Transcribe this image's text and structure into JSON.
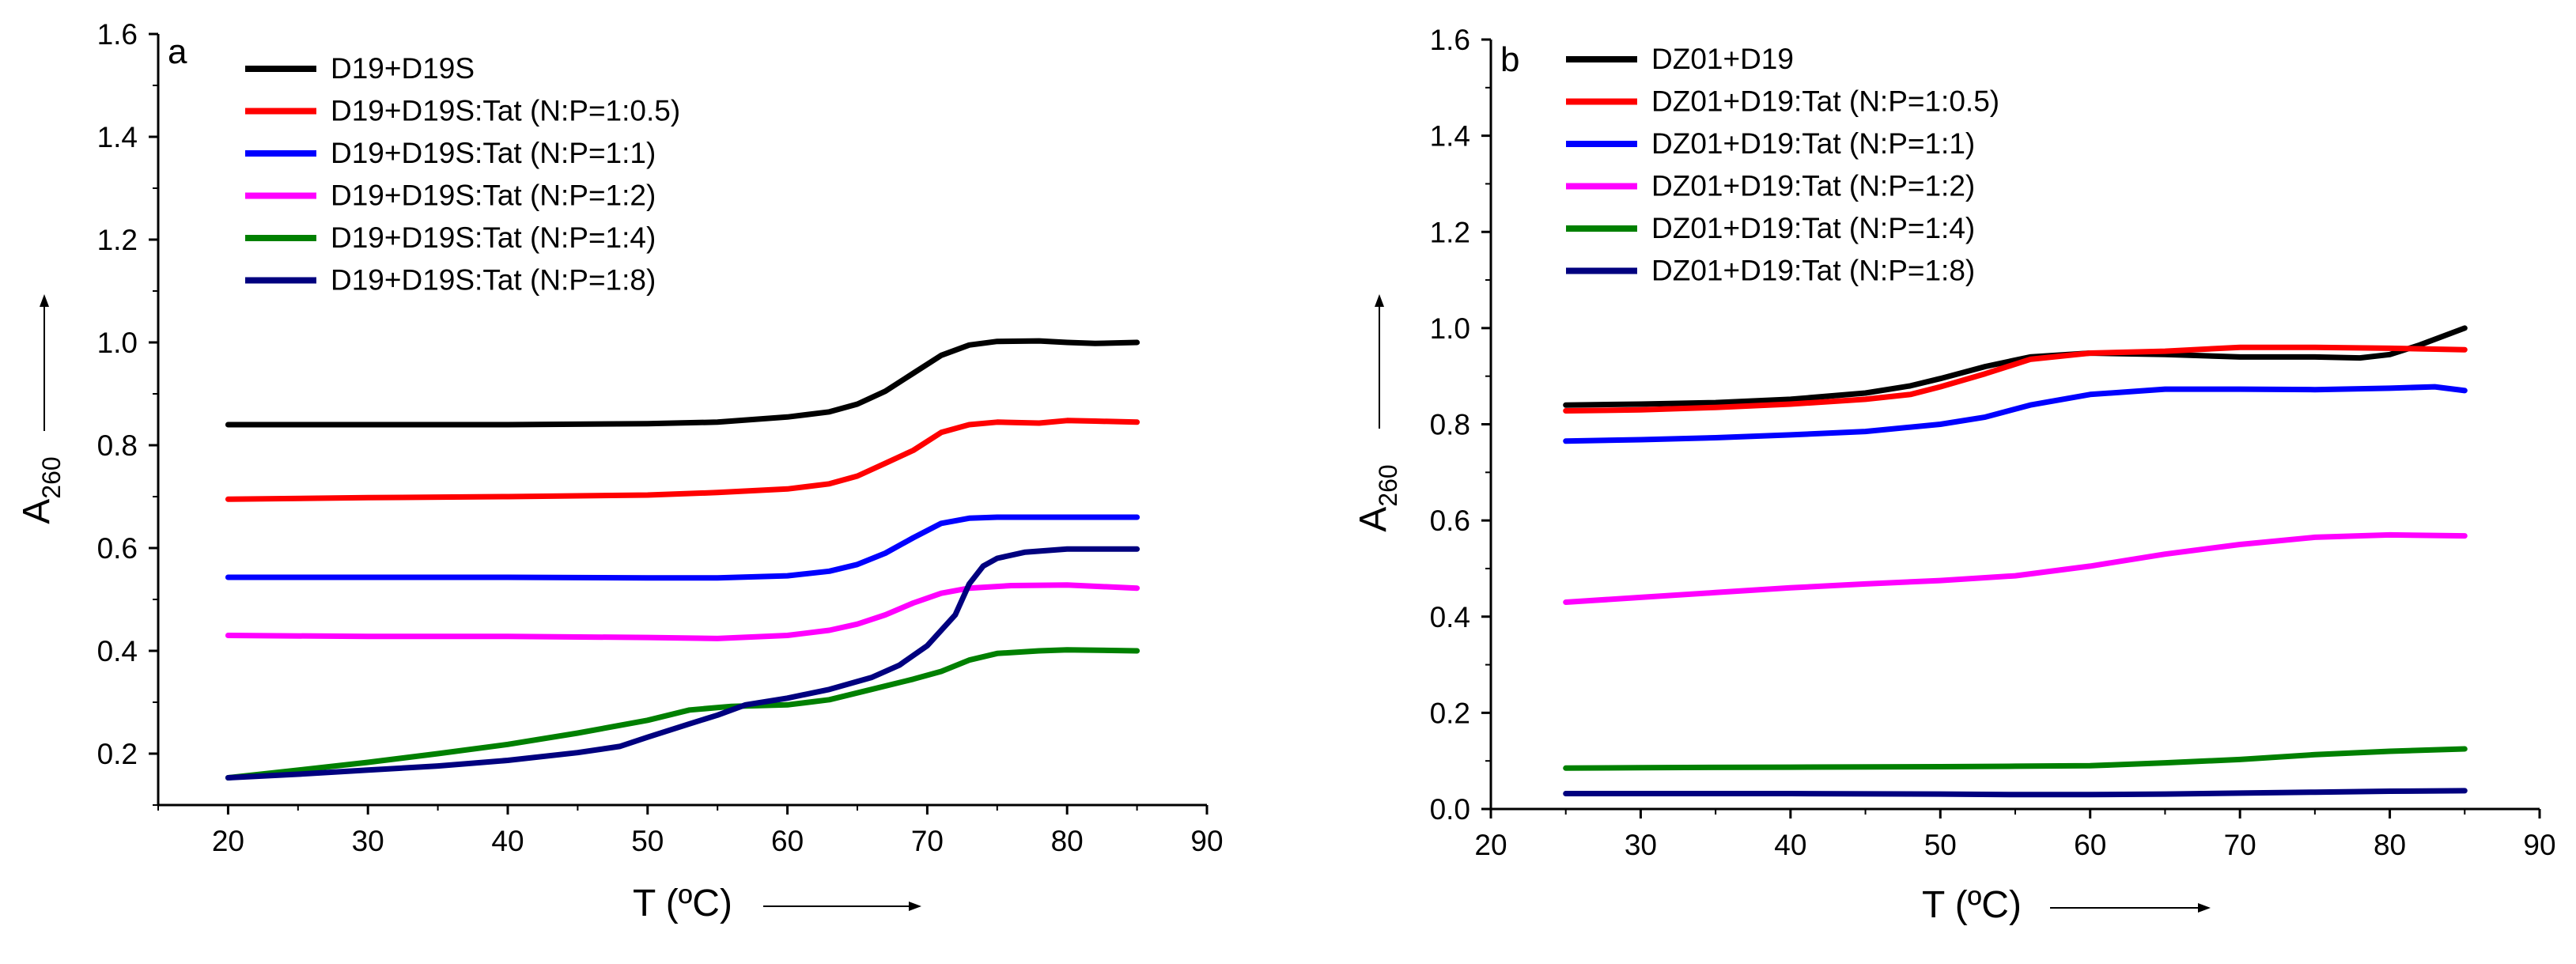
{
  "chart_data": [
    {
      "type": "line",
      "panel_label": "a",
      "xlabel": "T (ºC)",
      "ylabel": "A",
      "ylabel_subscript": "260",
      "xlim": [
        15,
        90
      ],
      "ylim": [
        0.1,
        1.6
      ],
      "x_ticks": [
        "20",
        "30",
        "40",
        "50",
        "60",
        "70",
        "80",
        "90"
      ],
      "y_ticks": [
        "0.2",
        "0.4",
        "0.6",
        "0.8",
        "1.0",
        "1.2",
        "1.4",
        "1.6"
      ],
      "grid": false,
      "legend_position": "top-left",
      "series": [
        {
          "name": "D19+D19S",
          "color": "#000000",
          "points": [
            [
              20,
              0.84
            ],
            [
              30,
              0.84
            ],
            [
              40,
              0.84
            ],
            [
              50,
              0.842
            ],
            [
              55,
              0.845
            ],
            [
              60,
              0.855
            ],
            [
              63,
              0.865
            ],
            [
              65,
              0.88
            ],
            [
              67,
              0.905
            ],
            [
              69,
              0.94
            ],
            [
              71,
              0.975
            ],
            [
              73,
              0.995
            ],
            [
              75,
              1.002
            ],
            [
              78,
              1.003
            ],
            [
              80,
              1.0
            ],
            [
              82,
              0.998
            ],
            [
              85,
              1.0
            ]
          ]
        },
        {
          "name": "D19+D19S:Tat (N:P=1:0.5)",
          "color": "#ff0000",
          "points": [
            [
              20,
              0.695
            ],
            [
              30,
              0.698
            ],
            [
              40,
              0.7
            ],
            [
              50,
              0.703
            ],
            [
              55,
              0.708
            ],
            [
              60,
              0.715
            ],
            [
              63,
              0.725
            ],
            [
              65,
              0.74
            ],
            [
              67,
              0.765
            ],
            [
              69,
              0.79
            ],
            [
              71,
              0.825
            ],
            [
              73,
              0.84
            ],
            [
              75,
              0.845
            ],
            [
              78,
              0.843
            ],
            [
              80,
              0.848
            ],
            [
              82,
              0.847
            ],
            [
              85,
              0.845
            ]
          ]
        },
        {
          "name": "D19+D19S:Tat (N:P=1:1)",
          "color": "#0000ff",
          "points": [
            [
              20,
              0.543
            ],
            [
              30,
              0.543
            ],
            [
              40,
              0.543
            ],
            [
              50,
              0.542
            ],
            [
              55,
              0.542
            ],
            [
              60,
              0.546
            ],
            [
              63,
              0.555
            ],
            [
              65,
              0.568
            ],
            [
              67,
              0.59
            ],
            [
              69,
              0.62
            ],
            [
              71,
              0.648
            ],
            [
              73,
              0.658
            ],
            [
              75,
              0.66
            ],
            [
              80,
              0.66
            ],
            [
              85,
              0.66
            ]
          ]
        },
        {
          "name": "D19+D19S:Tat (N:P=1:2)",
          "color": "#ff00ff",
          "points": [
            [
              20,
              0.43
            ],
            [
              30,
              0.428
            ],
            [
              40,
              0.428
            ],
            [
              50,
              0.426
            ],
            [
              55,
              0.424
            ],
            [
              60,
              0.43
            ],
            [
              63,
              0.44
            ],
            [
              65,
              0.452
            ],
            [
              67,
              0.47
            ],
            [
              69,
              0.493
            ],
            [
              71,
              0.512
            ],
            [
              73,
              0.522
            ],
            [
              76,
              0.527
            ],
            [
              80,
              0.528
            ],
            [
              85,
              0.522
            ]
          ]
        },
        {
          "name": "D19+D19S:Tat (N:P=1:4)",
          "color": "#008000",
          "points": [
            [
              20,
              0.153
            ],
            [
              25,
              0.168
            ],
            [
              30,
              0.183
            ],
            [
              35,
              0.2
            ],
            [
              40,
              0.218
            ],
            [
              45,
              0.24
            ],
            [
              50,
              0.265
            ],
            [
              53,
              0.285
            ],
            [
              56,
              0.292
            ],
            [
              60,
              0.295
            ],
            [
              63,
              0.305
            ],
            [
              66,
              0.325
            ],
            [
              69,
              0.345
            ],
            [
              71,
              0.36
            ],
            [
              73,
              0.382
            ],
            [
              75,
              0.395
            ],
            [
              78,
              0.4
            ],
            [
              80,
              0.402
            ],
            [
              85,
              0.4
            ]
          ]
        },
        {
          "name": "D19+D19S:Tat (N:P=1:8)",
          "color": "#00007f",
          "points": [
            [
              20,
              0.153
            ],
            [
              25,
              0.16
            ],
            [
              30,
              0.168
            ],
            [
              35,
              0.176
            ],
            [
              40,
              0.187
            ],
            [
              45,
              0.202
            ],
            [
              48,
              0.214
            ],
            [
              50,
              0.232
            ],
            [
              53,
              0.258
            ],
            [
              55,
              0.275
            ],
            [
              57,
              0.295
            ],
            [
              60,
              0.308
            ],
            [
              63,
              0.325
            ],
            [
              66,
              0.348
            ],
            [
              68,
              0.372
            ],
            [
              70,
              0.41
            ],
            [
              72,
              0.47
            ],
            [
              73,
              0.53
            ],
            [
              74,
              0.565
            ],
            [
              75,
              0.58
            ],
            [
              77,
              0.592
            ],
            [
              80,
              0.598
            ],
            [
              85,
              0.598
            ]
          ]
        }
      ],
      "legend_labels": [
        "D19+D19S",
        "D19+D19S:Tat (N:P=1:0.5)",
        "D19+D19S:Tat (N:P=1:1)",
        "D19+D19S:Tat (N:P=1:2)",
        "D19+D19S:Tat (N:P=1:4)",
        "D19+D19S:Tat (N:P=1:8)"
      ]
    },
    {
      "type": "line",
      "panel_label": "b",
      "xlabel": "T (ºC)",
      "ylabel": "A",
      "ylabel_subscript": "260",
      "xlim": [
        20,
        90
      ],
      "ylim": [
        0.0,
        1.6
      ],
      "x_ticks": [
        "20",
        "30",
        "40",
        "50",
        "60",
        "70",
        "80",
        "90"
      ],
      "y_ticks": [
        "0.0",
        "0.2",
        "0.4",
        "0.6",
        "0.8",
        "1.0",
        "1.2",
        "1.4",
        "1.6"
      ],
      "grid": false,
      "legend_position": "top-left",
      "series": [
        {
          "name": "DZ01+D19",
          "color": "#000000",
          "points": [
            [
              25,
              0.84
            ],
            [
              30,
              0.842
            ],
            [
              35,
              0.845
            ],
            [
              40,
              0.852
            ],
            [
              45,
              0.865
            ],
            [
              48,
              0.88
            ],
            [
              50,
              0.895
            ],
            [
              53,
              0.92
            ],
            [
              56,
              0.94
            ],
            [
              60,
              0.948
            ],
            [
              65,
              0.945
            ],
            [
              70,
              0.94
            ],
            [
              75,
              0.94
            ],
            [
              78,
              0.938
            ],
            [
              80,
              0.945
            ],
            [
              82,
              0.965
            ],
            [
              85,
              1.0
            ]
          ]
        },
        {
          "name": "DZ01+D19:Tat (N:P=1:0.5)",
          "color": "#ff0000",
          "points": [
            [
              25,
              0.828
            ],
            [
              30,
              0.83
            ],
            [
              35,
              0.835
            ],
            [
              40,
              0.842
            ],
            [
              45,
              0.852
            ],
            [
              48,
              0.862
            ],
            [
              50,
              0.878
            ],
            [
              53,
              0.905
            ],
            [
              56,
              0.935
            ],
            [
              60,
              0.948
            ],
            [
              65,
              0.952
            ],
            [
              70,
              0.96
            ],
            [
              75,
              0.96
            ],
            [
              80,
              0.958
            ],
            [
              85,
              0.955
            ]
          ]
        },
        {
          "name": "DZ01+D19:Tat (N:P=1:1)",
          "color": "#0000ff",
          "points": [
            [
              25,
              0.765
            ],
            [
              30,
              0.768
            ],
            [
              35,
              0.772
            ],
            [
              40,
              0.778
            ],
            [
              45,
              0.785
            ],
            [
              50,
              0.8
            ],
            [
              53,
              0.815
            ],
            [
              56,
              0.84
            ],
            [
              60,
              0.862
            ],
            [
              65,
              0.873
            ],
            [
              70,
              0.873
            ],
            [
              75,
              0.872
            ],
            [
              80,
              0.875
            ],
            [
              83,
              0.878
            ],
            [
              85,
              0.87
            ]
          ]
        },
        {
          "name": "DZ01+D19:Tat (N:P=1:2)",
          "color": "#ff00ff",
          "points": [
            [
              25,
              0.43
            ],
            [
              30,
              0.44
            ],
            [
              35,
              0.45
            ],
            [
              40,
              0.46
            ],
            [
              45,
              0.468
            ],
            [
              50,
              0.475
            ],
            [
              55,
              0.485
            ],
            [
              60,
              0.505
            ],
            [
              65,
              0.53
            ],
            [
              70,
              0.55
            ],
            [
              75,
              0.565
            ],
            [
              80,
              0.57
            ],
            [
              85,
              0.568
            ]
          ]
        },
        {
          "name": "DZ01+D19:Tat (N:P=1:4)",
          "color": "#008000",
          "points": [
            [
              25,
              0.085
            ],
            [
              30,
              0.086
            ],
            [
              40,
              0.087
            ],
            [
              50,
              0.088
            ],
            [
              55,
              0.089
            ],
            [
              60,
              0.09
            ],
            [
              65,
              0.096
            ],
            [
              70,
              0.103
            ],
            [
              75,
              0.113
            ],
            [
              80,
              0.12
            ],
            [
              85,
              0.125
            ]
          ]
        },
        {
          "name": "DZ01+D19:Tat (N:P=1:8)",
          "color": "#00007f",
          "points": [
            [
              25,
              0.032
            ],
            [
              30,
              0.032
            ],
            [
              40,
              0.032
            ],
            [
              50,
              0.031
            ],
            [
              55,
              0.03
            ],
            [
              60,
              0.03
            ],
            [
              65,
              0.031
            ],
            [
              70,
              0.033
            ],
            [
              75,
              0.035
            ],
            [
              80,
              0.037
            ],
            [
              85,
              0.038
            ]
          ]
        }
      ],
      "legend_labels": [
        "DZ01+D19",
        "DZ01+D19:Tat (N:P=1:0.5)",
        "DZ01+D19:Tat (N:P=1:1)",
        "DZ01+D19:Tat (N:P=1:2)",
        "DZ01+D19:Tat (N:P=1:4)",
        "DZ01+D19:Tat (N:P=1:8)"
      ]
    }
  ]
}
